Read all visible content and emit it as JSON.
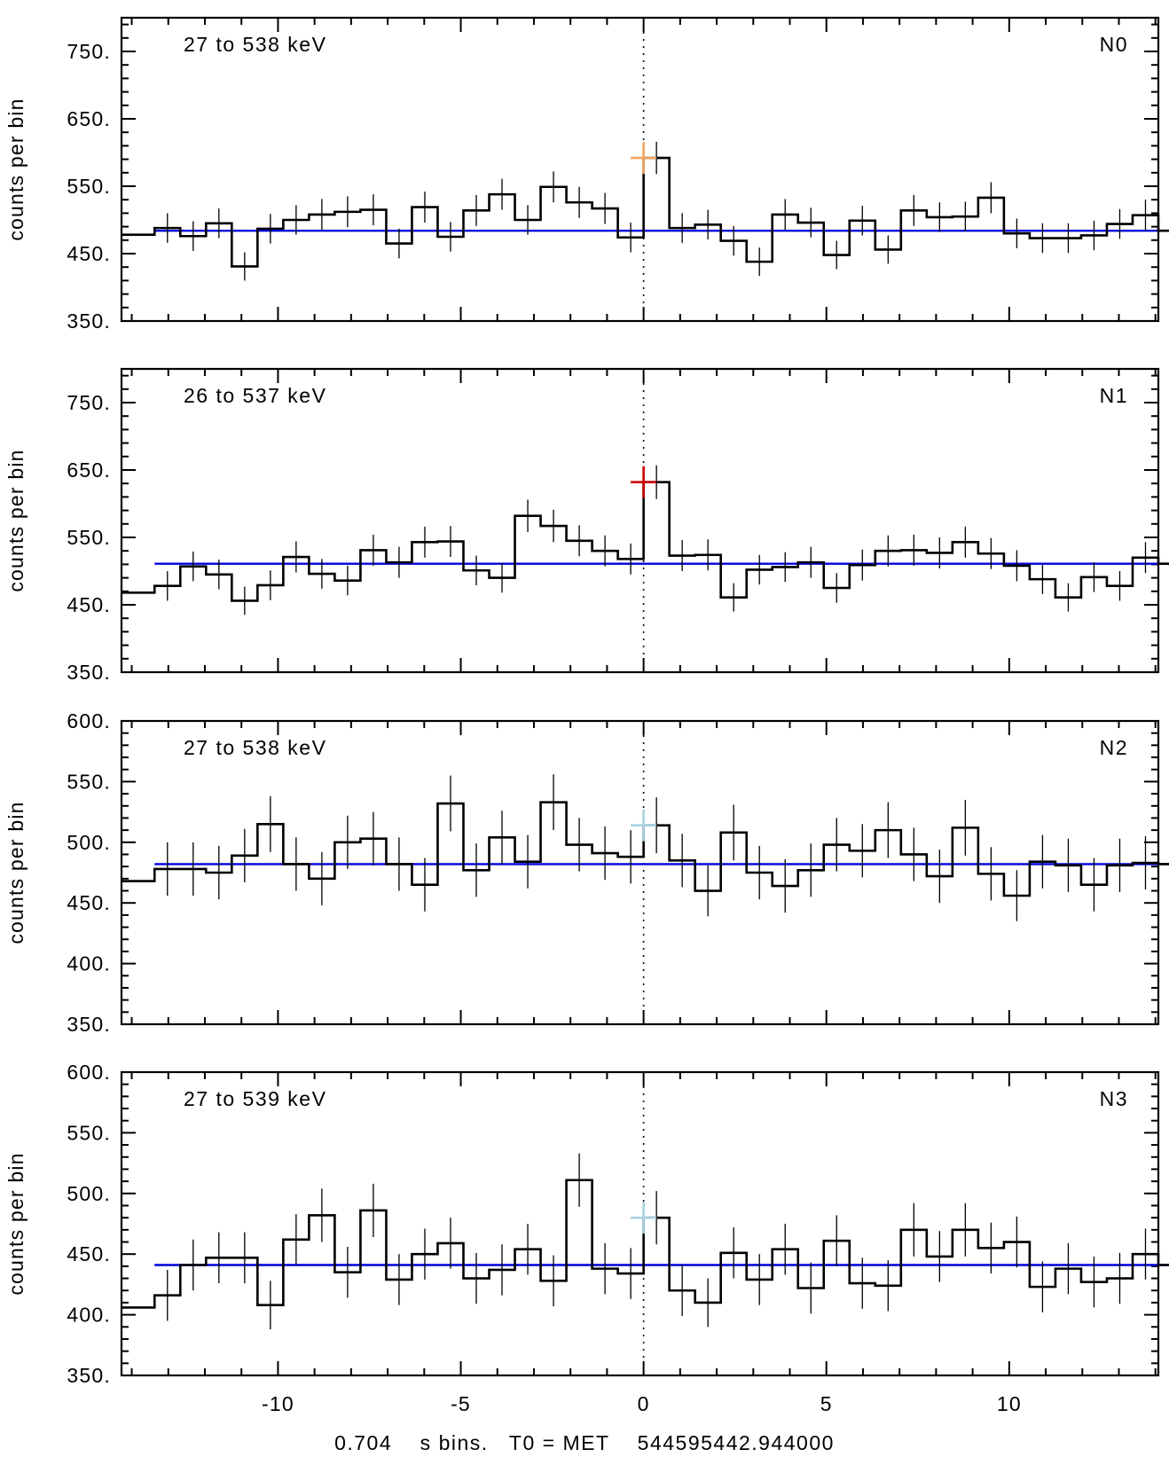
{
  "chart_data": {
    "type": "line",
    "description_axis": {
      "xlim": [
        -14.28,
        14.08
      ],
      "x_ticks": [
        -10,
        -5,
        0,
        5,
        10
      ],
      "x_tick_labels": [
        "-10",
        "-5",
        "0",
        "5",
        "10"
      ],
      "xlabel": "0.704    s bins.   T0 = MET    544595442.944000",
      "ylabel": "counts per bin"
    },
    "bin_width": 0.704,
    "x_start": -13.376,
    "trigger_time": 0,
    "panels": [
      {
        "detector": "N0",
        "energy_range": "27 to 538 keV",
        "ylim": [
          350,
          800
        ],
        "y_ticks": [
          350,
          450,
          550,
          650,
          750
        ],
        "y_tick_labels": [
          "350.",
          "450.",
          "550.",
          "650.",
          "750."
        ],
        "background": 484,
        "highlight_color": "#f4a460",
        "highlight_value": 592,
        "counts": [
          488,
          476,
          495,
          431,
          487,
          500,
          508,
          512,
          515,
          465,
          519,
          475,
          514,
          538,
          500,
          549,
          526,
          517,
          474,
          592,
          488,
          493,
          469,
          438,
          508,
          496,
          448,
          499,
          456,
          514,
          504,
          505,
          533,
          480,
          473,
          473,
          477,
          494,
          507,
          484
        ],
        "errors": [
          22,
          22,
          22,
          21,
          22,
          22,
          23,
          23,
          23,
          22,
          23,
          22,
          23,
          23,
          22,
          23,
          23,
          23,
          22,
          24,
          22,
          22,
          22,
          21,
          23,
          22,
          21,
          22,
          21,
          23,
          22,
          22,
          23,
          22,
          22,
          22,
          22,
          22,
          23,
          22
        ]
      },
      {
        "detector": "N1",
        "energy_range": "26 to 537 keV",
        "ylim": [
          350,
          800
        ],
        "y_ticks": [
          350,
          450,
          550,
          650,
          750
        ],
        "y_tick_labels": [
          "350.",
          "450.",
          "550.",
          "650.",
          "750."
        ],
        "background": 511,
        "highlight_color": "#cc0000",
        "highlight_value": 632,
        "counts": [
          478,
          507,
          495,
          456,
          479,
          521,
          496,
          486,
          531,
          513,
          543,
          544,
          501,
          490,
          582,
          567,
          545,
          530,
          518,
          632,
          523,
          524,
          461,
          502,
          506,
          513,
          475,
          509,
          530,
          531,
          527,
          543,
          526,
          508,
          488,
          461,
          491,
          478,
          520,
          511
        ],
        "errors": [
          22,
          22,
          22,
          21,
          22,
          23,
          22,
          22,
          23,
          23,
          23,
          23,
          22,
          22,
          24,
          24,
          23,
          23,
          23,
          25,
          23,
          23,
          21,
          22,
          22,
          23,
          22,
          23,
          23,
          23,
          23,
          23,
          23,
          23,
          22,
          21,
          22,
          22,
          23,
          22
        ]
      },
      {
        "detector": "N2",
        "energy_range": "27 to 538 keV",
        "ylim": [
          350,
          600
        ],
        "y_ticks": [
          350,
          400,
          450,
          500,
          550,
          600
        ],
        "y_tick_labels": [
          "350.",
          "400.",
          "450.",
          "500.",
          "550.",
          "600."
        ],
        "background": 482,
        "highlight_color": "#a8d0e0",
        "highlight_value": 514,
        "counts": [
          478,
          478,
          475,
          489,
          515,
          482,
          470,
          500,
          503,
          482,
          465,
          532,
          477,
          504,
          484,
          533,
          498,
          491,
          488,
          514,
          485,
          460,
          508,
          475,
          464,
          477,
          498,
          493,
          510,
          490,
          472,
          512,
          474,
          456,
          484,
          481,
          465,
          481,
          483,
          482
        ],
        "errors": [
          22,
          22,
          22,
          22,
          23,
          22,
          22,
          22,
          22,
          22,
          22,
          23,
          22,
          22,
          22,
          23,
          22,
          22,
          22,
          23,
          22,
          21,
          23,
          22,
          22,
          22,
          22,
          22,
          23,
          22,
          22,
          23,
          22,
          21,
          22,
          22,
          22,
          22,
          22,
          22
        ]
      },
      {
        "detector": "N3",
        "energy_range": "27 to 539 keV",
        "ylim": [
          350,
          600
        ],
        "y_ticks": [
          350,
          400,
          450,
          500,
          550,
          600
        ],
        "y_tick_labels": [
          "350.",
          "400.",
          "450.",
          "500.",
          "550.",
          "600."
        ],
        "background": 441,
        "highlight_color": "#a8d0e0",
        "highlight_value": 480,
        "counts": [
          416,
          441,
          447,
          447,
          408,
          462,
          482,
          435,
          486,
          429,
          450,
          459,
          430,
          437,
          454,
          428,
          511,
          438,
          434,
          480,
          420,
          410,
          451,
          429,
          454,
          422,
          461,
          426,
          424,
          470,
          448,
          470,
          455,
          460,
          423,
          438,
          427,
          430,
          450,
          441
        ],
        "errors": [
          21,
          21,
          21,
          21,
          20,
          21,
          22,
          21,
          22,
          21,
          21,
          21,
          21,
          21,
          21,
          21,
          22,
          21,
          21,
          22,
          21,
          20,
          21,
          21,
          21,
          21,
          21,
          21,
          21,
          22,
          21,
          22,
          21,
          21,
          21,
          21,
          21,
          21,
          21,
          21
        ]
      }
    ]
  }
}
